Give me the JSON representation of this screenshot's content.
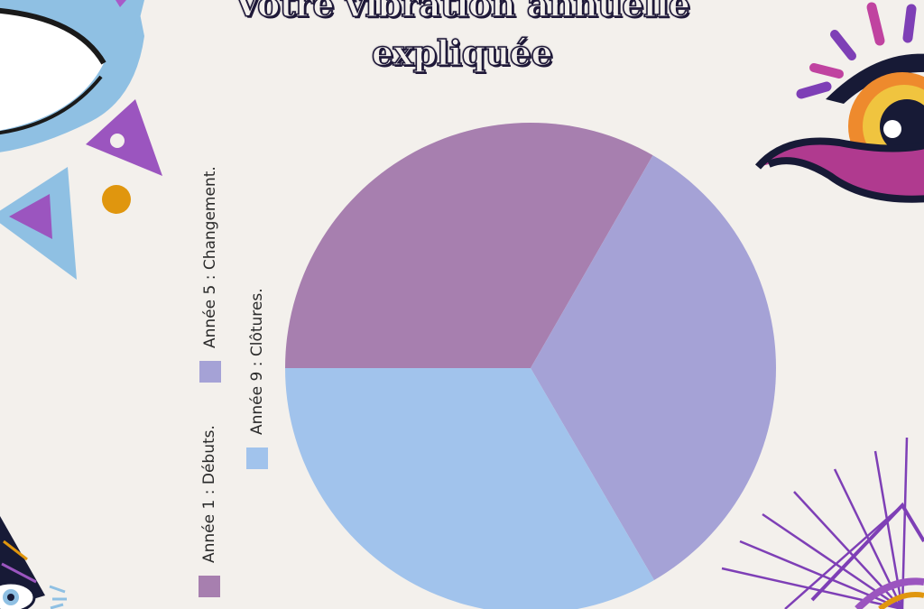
{
  "title": {
    "line1": "Votre vibration annuelle",
    "line2": "expliquée"
  },
  "chart_data": {
    "type": "pie",
    "title": "Votre vibration annuelle expliquée",
    "categories": [
      "Année 1 : Débuts.",
      "Année 5 : Changement.",
      "Année 9 : Clôtures."
    ],
    "values": [
      33.3,
      33.3,
      33.4
    ],
    "colors": [
      "#a77faf",
      "#a5a2d6",
      "#a1c3ec"
    ],
    "legend_position": "left"
  },
  "decorations": {
    "top_left": "eye-and-triangles-ornament",
    "top_right": "eye-ornament",
    "bottom_left": "eye-ornament",
    "bottom_right": "starburst-ornament"
  }
}
